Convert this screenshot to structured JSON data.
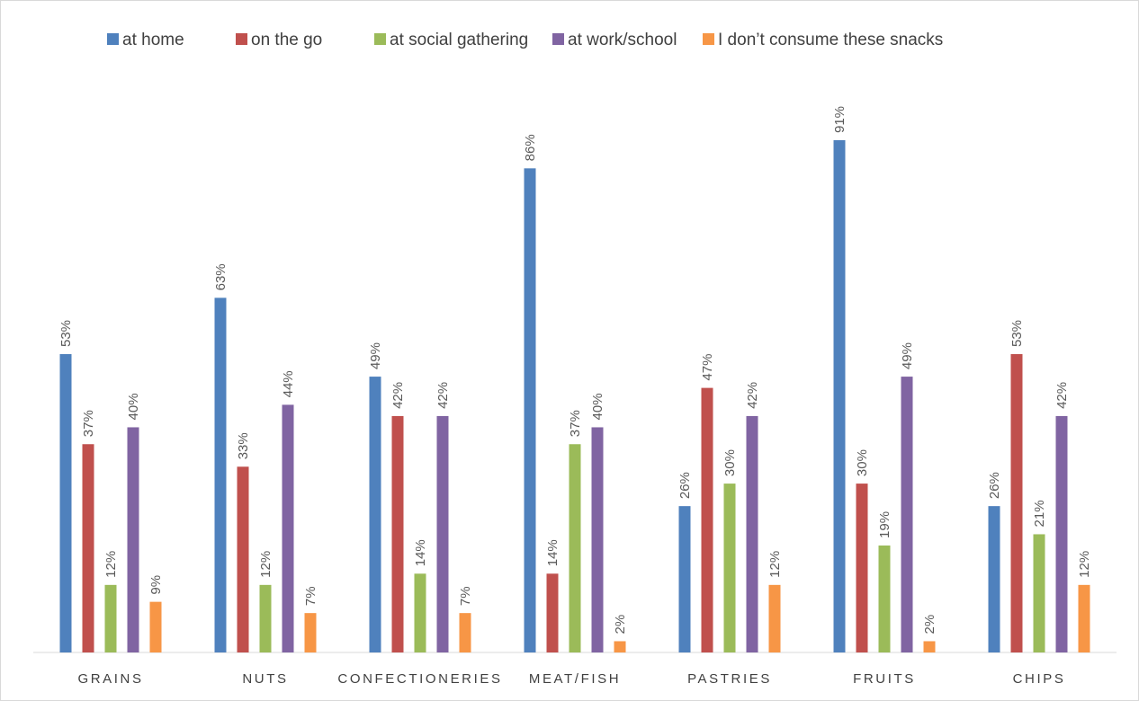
{
  "chart_data": {
    "type": "bar",
    "title": "",
    "xlabel": "",
    "ylabel": "",
    "ylim": [
      0,
      100
    ],
    "grid": false,
    "legend_position": "top",
    "value_suffix": "%",
    "categories": [
      "GRAINS",
      "NUTS",
      "CONFECTIONERIES",
      "MEAT/FISH",
      "PASTRIES",
      "FRUITS",
      "CHIPS"
    ],
    "series": [
      {
        "name": "at home",
        "color": "#4f81bd",
        "values": [
          53,
          63,
          49,
          86,
          26,
          91,
          26
        ]
      },
      {
        "name": "on the go",
        "color": "#c0504d",
        "values": [
          37,
          33,
          42,
          14,
          47,
          30,
          53
        ]
      },
      {
        "name": "at social gathering",
        "color": "#9bbb59",
        "values": [
          12,
          12,
          14,
          37,
          30,
          19,
          21
        ]
      },
      {
        "name": "at work/school",
        "color": "#8064a2",
        "values": [
          40,
          44,
          42,
          40,
          42,
          49,
          42
        ]
      },
      {
        "name": "I  don’t consume these snacks",
        "color": "#f79646",
        "values": [
          9,
          7,
          7,
          2,
          12,
          2,
          12
        ]
      }
    ]
  }
}
